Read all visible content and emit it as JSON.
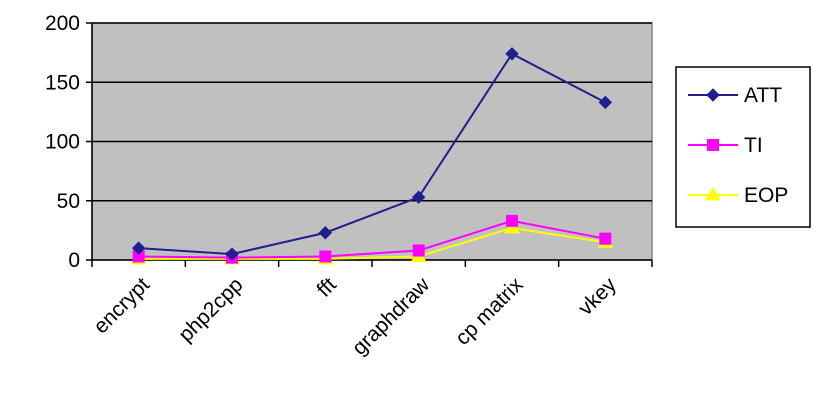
{
  "chart_data": {
    "type": "line",
    "categories": [
      "encrypt",
      "php2cpp",
      "fft",
      "graphdraw",
      "cp matrix",
      "vkey"
    ],
    "series": [
      {
        "name": "ATT",
        "values": [
          10,
          5,
          23,
          53,
          174,
          133
        ],
        "color": "#1f1f8f",
        "marker": "diamond"
      },
      {
        "name": "TI",
        "values": [
          3,
          2,
          3,
          8,
          33,
          18
        ],
        "color": "#ff00ff",
        "marker": "square"
      },
      {
        "name": "EOP",
        "values": [
          1,
          1,
          1,
          3,
          27,
          15
        ],
        "color": "#ffff00",
        "marker": "triangle"
      }
    ],
    "ylim": [
      0,
      200
    ],
    "yticks": [
      0,
      50,
      100,
      150,
      200
    ],
    "grid": true,
    "plot_background": "#c0c0c0",
    "legend_position": "right"
  }
}
